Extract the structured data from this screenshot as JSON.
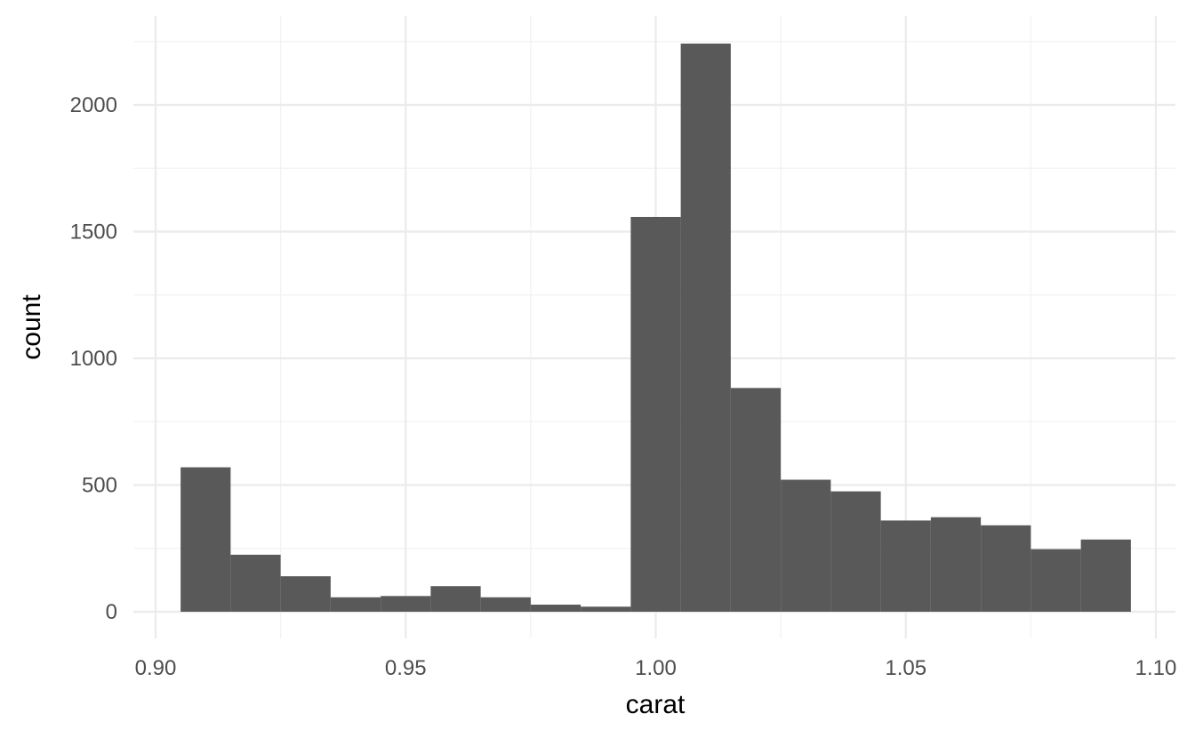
{
  "chart_data": {
    "type": "histogram",
    "xlabel": "carat",
    "ylabel": "count",
    "xlim": [
      0.9,
      1.1
    ],
    "ylim": [
      0,
      2250
    ],
    "x_ticks": [
      {
        "value": 0.9,
        "label": "0.90"
      },
      {
        "value": 0.95,
        "label": "0.95"
      },
      {
        "value": 1.0,
        "label": "1.00"
      },
      {
        "value": 1.05,
        "label": "1.05"
      },
      {
        "value": 1.1,
        "label": "1.10"
      }
    ],
    "y_ticks": [
      {
        "value": 0,
        "label": "0"
      },
      {
        "value": 500,
        "label": "500"
      },
      {
        "value": 1000,
        "label": "1000"
      },
      {
        "value": 1500,
        "label": "1500"
      },
      {
        "value": 2000,
        "label": "2000"
      }
    ],
    "x_minor_ticks": [
      0.925,
      0.975,
      1.025,
      1.075
    ],
    "y_minor_ticks": [
      250,
      750,
      1250,
      1750,
      2250
    ],
    "bin_width": 0.01,
    "bins": [
      {
        "x_min": 0.905,
        "x_max": 0.915,
        "count": 570
      },
      {
        "x_min": 0.915,
        "x_max": 0.925,
        "count": 225
      },
      {
        "x_min": 0.925,
        "x_max": 0.935,
        "count": 140
      },
      {
        "x_min": 0.935,
        "x_max": 0.945,
        "count": 57
      },
      {
        "x_min": 0.945,
        "x_max": 0.955,
        "count": 62
      },
      {
        "x_min": 0.955,
        "x_max": 0.965,
        "count": 101
      },
      {
        "x_min": 0.965,
        "x_max": 0.975,
        "count": 57
      },
      {
        "x_min": 0.975,
        "x_max": 0.985,
        "count": 28
      },
      {
        "x_min": 0.985,
        "x_max": 0.995,
        "count": 20
      },
      {
        "x_min": 0.995,
        "x_max": 1.005,
        "count": 1558
      },
      {
        "x_min": 1.005,
        "x_max": 1.015,
        "count": 2242
      },
      {
        "x_min": 1.015,
        "x_max": 1.025,
        "count": 883
      },
      {
        "x_min": 1.025,
        "x_max": 1.035,
        "count": 521
      },
      {
        "x_min": 1.035,
        "x_max": 1.045,
        "count": 475
      },
      {
        "x_min": 1.045,
        "x_max": 1.055,
        "count": 360
      },
      {
        "x_min": 1.055,
        "x_max": 1.065,
        "count": 373
      },
      {
        "x_min": 1.065,
        "x_max": 1.075,
        "count": 341
      },
      {
        "x_min": 1.075,
        "x_max": 1.085,
        "count": 247
      },
      {
        "x_min": 1.085,
        "x_max": 1.095,
        "count": 285
      }
    ],
    "bar_color": "#595959",
    "grid": true,
    "legend": "none"
  }
}
